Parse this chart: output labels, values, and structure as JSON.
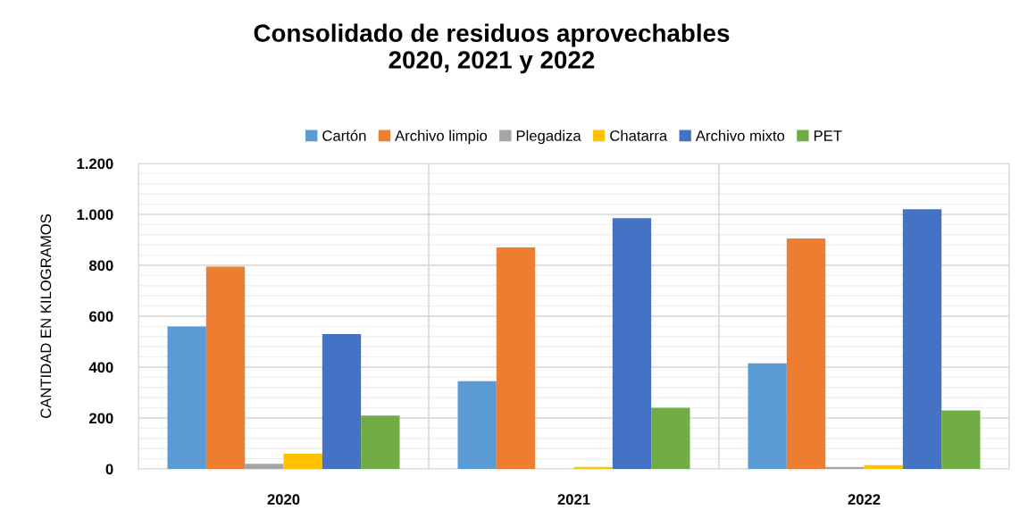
{
  "chart_data": {
    "type": "bar",
    "title": "Consolidado de residuos aprovechables\n2020, 2021 y 2022",
    "ylabel": "CANTIDAD EN KILOGRAMOS",
    "categories": [
      "2020",
      "2021",
      "2022"
    ],
    "series": [
      {
        "name": "Cartón",
        "color": "#5b9bd5",
        "values": [
          560,
          345,
          415
        ]
      },
      {
        "name": "Archivo limpio",
        "color": "#ed7d31",
        "values": [
          795,
          870,
          905
        ]
      },
      {
        "name": "Plegadiza",
        "color": "#a5a5a5",
        "values": [
          20,
          0,
          8
        ]
      },
      {
        "name": "Chatarra",
        "color": "#ffc000",
        "values": [
          60,
          8,
          15
        ]
      },
      {
        "name": "Archivo mixto",
        "color": "#4472c4",
        "values": [
          530,
          985,
          1020
        ]
      },
      {
        "name": "PET",
        "color": "#70ad47",
        "values": [
          210,
          240,
          230
        ]
      }
    ],
    "ylim": [
      0,
      1200
    ],
    "yticks": [
      0,
      200,
      400,
      600,
      800,
      {
        "value": 1000,
        "label": "1.000"
      },
      {
        "value": 1200,
        "label": "1.200"
      }
    ],
    "grid": true,
    "legend": "top"
  }
}
